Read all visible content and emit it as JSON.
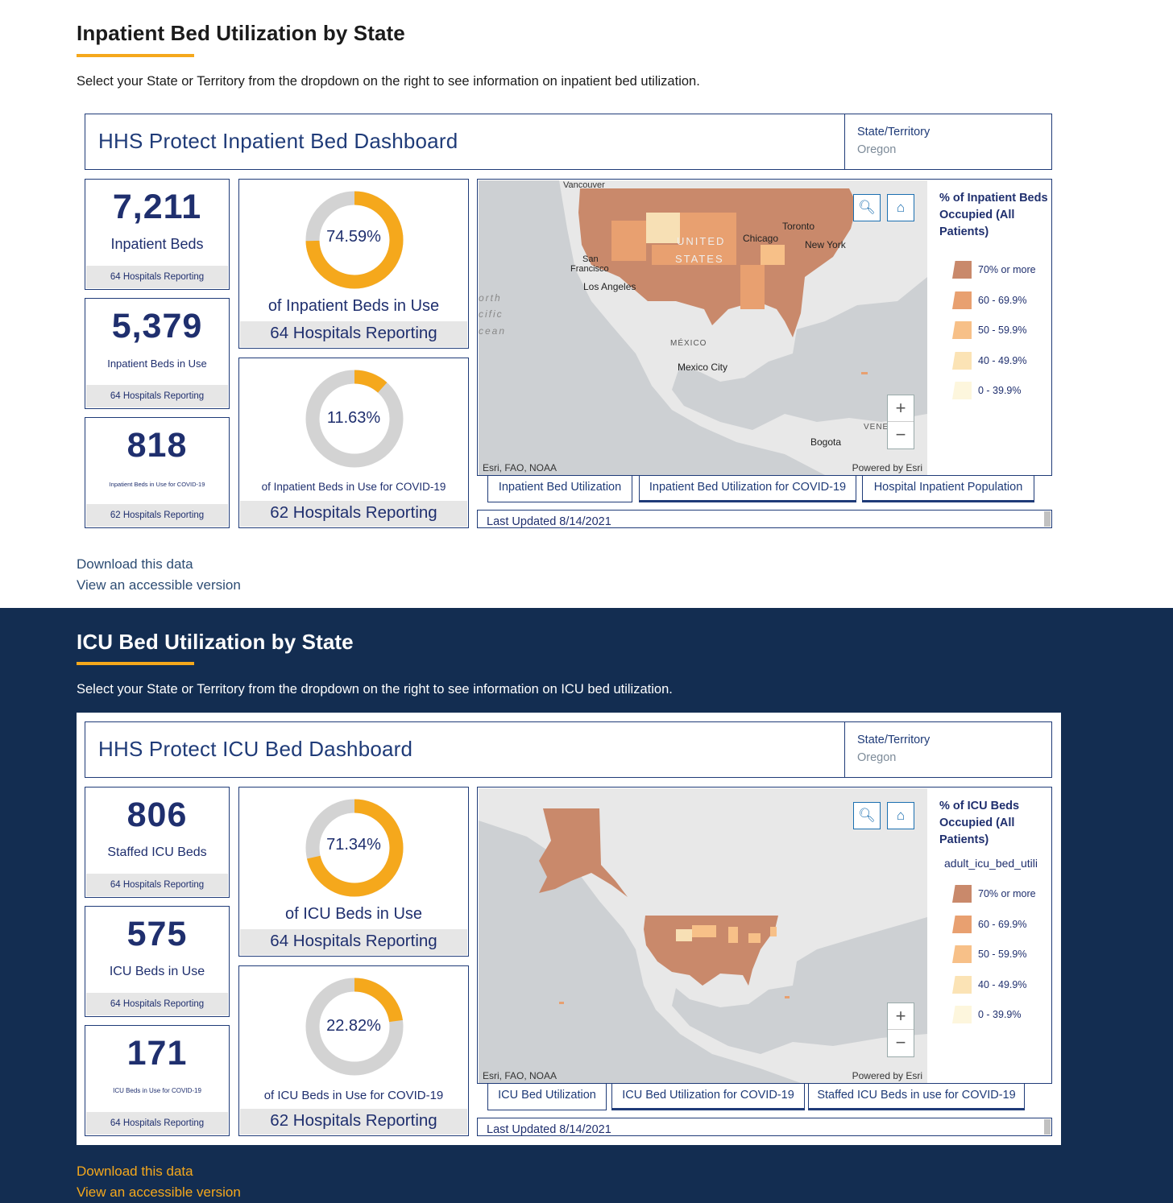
{
  "inpatient": {
    "heading": "Inpatient Bed Utilization by State",
    "description": "Select your State or Territory from the dropdown on the right to see information on inpatient bed utilization.",
    "dashboard_title": "HHS Protect Inpatient Bed Dashboard",
    "state_label": "State/Territory",
    "state_value": "Oregon",
    "cards": [
      {
        "number": "7,211",
        "label": "Inpatient Beds",
        "footer": "64 Hospitals Reporting"
      },
      {
        "number": "5,379",
        "label": "Inpatient Beds in Use",
        "footer": "64 Hospitals Reporting"
      },
      {
        "number": "818",
        "label": "Inpatient Beds in Use for COVID-19",
        "footer": "62 Hospitals Reporting"
      }
    ],
    "gauges": [
      {
        "percent_text": "74.59%",
        "percent": 74.59,
        "label": "of Inpatient Beds in Use",
        "footer": "64 Hospitals Reporting"
      },
      {
        "percent_text": "11.63%",
        "percent": 11.63,
        "label": "of Inpatient Beds in Use for COVID-19",
        "footer": "62 Hospitals Reporting"
      }
    ],
    "map": {
      "labels": {
        "vancouver": "Vancouver",
        "united": "UNITED",
        "states": "STATES",
        "toronto": "Toronto",
        "chicago": "Chicago",
        "new_york": "New York",
        "san": "San",
        "francisco": "Francisco",
        "los_angeles": "Los Angeles",
        "north": "orth",
        "pacific": "cific",
        "ocean": "cean",
        "mexico": "MÉXICO",
        "mexico_city": "Mexico City",
        "venezuela": "VENEZUEL",
        "bogota": "Bogota"
      },
      "attribution": "Esri, FAO, NOAA",
      "powered": "Powered by Esri",
      "zoom_in": "+",
      "zoom_out": "−"
    },
    "legend": {
      "title": "% of Inpatient Beds Occupied (All Patients)",
      "items": [
        {
          "label": "70% or more",
          "color": "#c9896b"
        },
        {
          "label": "60 - 69.9%",
          "color": "#e8a070"
        },
        {
          "label": "50 - 59.9%",
          "color": "#f7c088"
        },
        {
          "label": "40 - 49.9%",
          "color": "#fbe3b5"
        },
        {
          "label": "0 - 39.9%",
          "color": "#fdf6dd"
        }
      ]
    },
    "tabs": [
      "Inpatient Bed Utilization",
      "Inpatient Bed Utilization for COVID-19",
      "Hospital Inpatient Population"
    ],
    "last_updated": "Last Updated 8/14/2021",
    "links": {
      "download": "Download this data",
      "accessible": "View an accessible version"
    }
  },
  "icu": {
    "heading": "ICU Bed Utilization by State",
    "description": "Select your State or Territory from the dropdown on the right to see information on ICU bed utilization.",
    "dashboard_title": "HHS Protect ICU Bed Dashboard",
    "state_label": "State/Territory",
    "state_value": "Oregon",
    "cards": [
      {
        "number": "806",
        "label": "Staffed ICU Beds",
        "footer": "64 Hospitals Reporting"
      },
      {
        "number": "575",
        "label": "ICU Beds in Use",
        "footer": "64 Hospitals Reporting"
      },
      {
        "number": "171",
        "label": "ICU Beds in Use for COVID-19",
        "footer": "64 Hospitals Reporting"
      }
    ],
    "gauges": [
      {
        "percent_text": "71.34%",
        "percent": 71.34,
        "label": "of ICU Beds in Use",
        "footer": "64 Hospitals Reporting"
      },
      {
        "percent_text": "22.82%",
        "percent": 22.82,
        "label": "of ICU Beds in Use for COVID-19",
        "footer": "62 Hospitals Reporting"
      }
    ],
    "map": {
      "attribution": "Esri, FAO, NOAA",
      "powered": "Powered by Esri",
      "zoom_in": "+",
      "zoom_out": "−"
    },
    "legend": {
      "title": "% of ICU Beds Occupied (All Patients)",
      "field": "adult_icu_bed_utili",
      "items": [
        {
          "label": "70% or more",
          "color": "#c9896b"
        },
        {
          "label": "60 - 69.9%",
          "color": "#e8a070"
        },
        {
          "label": "50 - 59.9%",
          "color": "#f7c088"
        },
        {
          "label": "40 - 49.9%",
          "color": "#fbe3b5"
        },
        {
          "label": "0 - 39.9%",
          "color": "#fdf6dd"
        }
      ]
    },
    "tabs": [
      "ICU Bed Utilization",
      "ICU Bed Utilization for COVID-19",
      "Staffed ICU Beds in use for COVID-19"
    ],
    "last_updated": "Last Updated 8/14/2021",
    "links": {
      "download": "Download this data",
      "accessible": "View an accessible version"
    }
  },
  "colors": {
    "accent": "#f5a81c",
    "navy": "#132d51",
    "dash_blue": "#1f3b78",
    "gauge_track": "#d3d3d3"
  }
}
